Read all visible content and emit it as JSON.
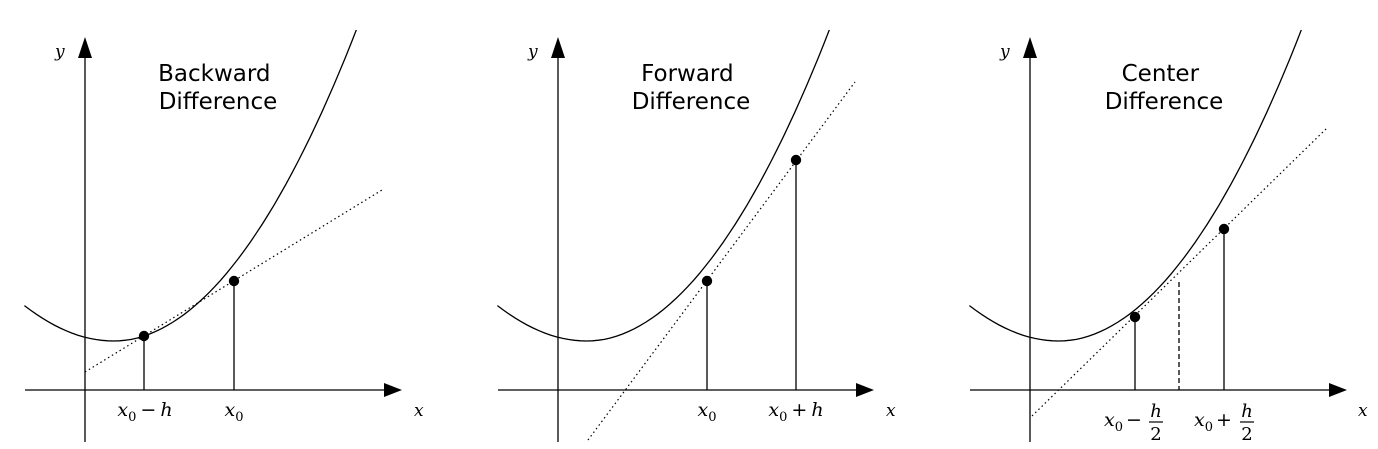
{
  "panels": [
    {
      "id": "backward",
      "title": [
        "Backward",
        "Difference"
      ],
      "y_label": "y",
      "x_label": "x",
      "labels": [
        {
          "kind": "plain",
          "var": "x",
          "sub": "0",
          "op": "−",
          "term": "h"
        },
        {
          "kind": "plain",
          "var": "x",
          "sub": "0"
        }
      ]
    },
    {
      "id": "forward",
      "title": [
        "Forward",
        "Difference"
      ],
      "y_label": "y",
      "x_label": "x",
      "labels": [
        {
          "kind": "plain",
          "var": "x",
          "sub": "0"
        },
        {
          "kind": "plain",
          "var": "x",
          "sub": "0",
          "op": "+",
          "term": "h"
        }
      ]
    },
    {
      "id": "center",
      "title": [
        "Center",
        "Difference"
      ],
      "y_label": "y",
      "x_label": "x",
      "labels": [
        {
          "kind": "frac",
          "var": "x",
          "sub": "0",
          "op": "−",
          "num": "h",
          "den": "2"
        },
        {
          "kind": "frac",
          "var": "x",
          "sub": "0",
          "op": "+",
          "num": "h",
          "den": "2"
        }
      ]
    }
  ]
}
